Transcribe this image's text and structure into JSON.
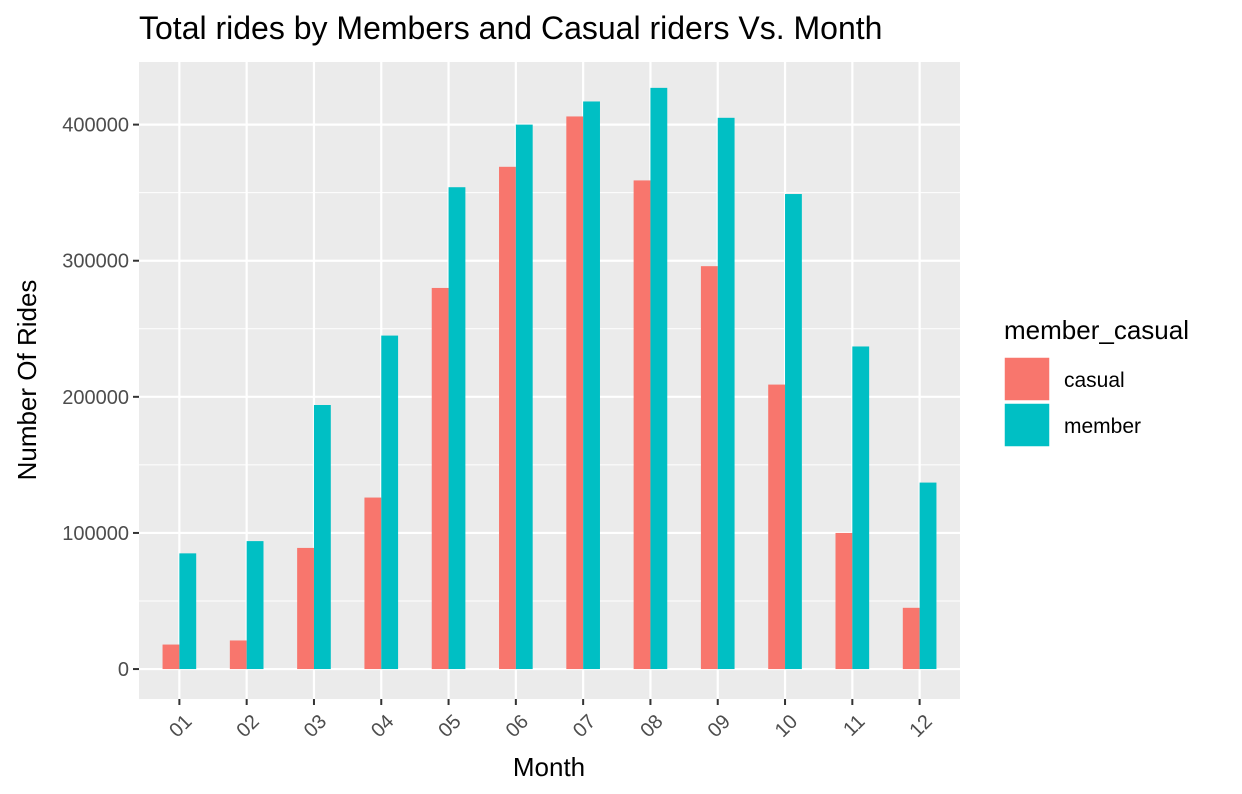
{
  "chart_data": {
    "type": "bar",
    "title": "Total rides by Members and Casual riders Vs. Month",
    "xlabel": "Month",
    "ylabel": "Number Of Rides",
    "categories": [
      "01",
      "02",
      "03",
      "04",
      "05",
      "06",
      "07",
      "08",
      "09",
      "10",
      "11",
      "12"
    ],
    "series": [
      {
        "name": "casual",
        "color": "#F8766D",
        "values": [
          18000,
          21000,
          89000,
          126000,
          280000,
          369000,
          406000,
          359000,
          296000,
          209000,
          100000,
          45000
        ]
      },
      {
        "name": "member",
        "color": "#00BFC4",
        "values": [
          85000,
          94000,
          194000,
          245000,
          354000,
          400000,
          417000,
          427000,
          405000,
          349000,
          237000,
          137000
        ]
      }
    ],
    "ylim": [
      -22000,
      446000
    ],
    "yticks": [
      0,
      100000,
      200000,
      300000,
      400000
    ],
    "ytick_labels": [
      "0",
      "100000",
      "200000",
      "300000",
      "400000"
    ],
    "legend": {
      "title": "member_casual",
      "position": "right"
    },
    "grid": true,
    "panel_background": "#EBEBEB"
  }
}
